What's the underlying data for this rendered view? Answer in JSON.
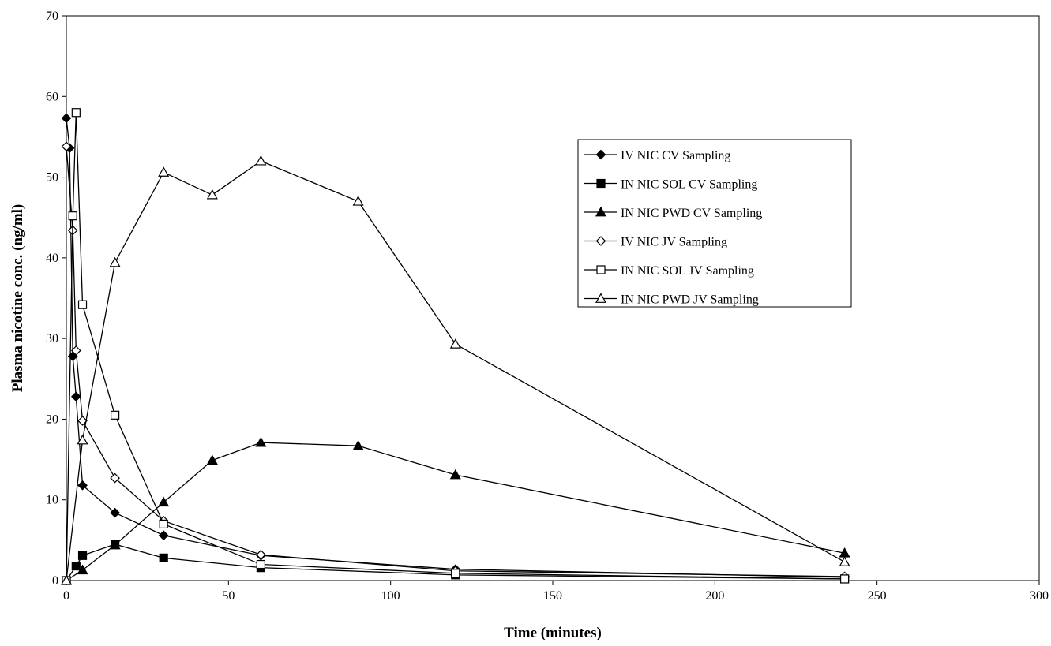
{
  "chart_data": {
    "type": "line",
    "title": "",
    "xlabel": "Time (minutes)",
    "ylabel": "Plasma nicotine conc. (ng/ml)",
    "xlim": [
      0,
      300
    ],
    "ylim": [
      0,
      70
    ],
    "xticks": [
      0,
      50,
      100,
      150,
      200,
      250,
      300
    ],
    "yticks": [
      0,
      10,
      20,
      30,
      40,
      50,
      60,
      70
    ],
    "grid": false,
    "legend_position": "right",
    "series": [
      {
        "name": "IV NIC CV Sampling",
        "marker": "diamond",
        "filled": true,
        "x": [
          0,
          1,
          2,
          3,
          5,
          15,
          30,
          60,
          120,
          240
        ],
        "y": [
          57.3,
          53.6,
          27.8,
          22.8,
          11.8,
          8.4,
          5.6,
          3.1,
          1.4,
          0.4
        ]
      },
      {
        "name": "IN NIC SOL CV Sampling",
        "marker": "square",
        "filled": true,
        "x": [
          0,
          3,
          5,
          15,
          30,
          60,
          120,
          240
        ],
        "y": [
          0,
          1.8,
          3.1,
          4.5,
          2.8,
          1.6,
          0.7,
          0.2
        ]
      },
      {
        "name": "IN NIC PWD CV Sampling",
        "marker": "triangle",
        "filled": true,
        "x": [
          0,
          5,
          15,
          30,
          45,
          60,
          90,
          120,
          240
        ],
        "y": [
          0,
          1.3,
          4.4,
          9.7,
          14.9,
          17.1,
          16.7,
          13.1,
          3.4
        ]
      },
      {
        "name": "IV NIC JV Sampling",
        "marker": "diamond",
        "filled": false,
        "x": [
          0,
          2,
          3,
          5,
          15,
          30,
          60,
          120,
          240
        ],
        "y": [
          53.8,
          43.4,
          28.5,
          19.8,
          12.7,
          7.4,
          3.2,
          1.2,
          0.5
        ]
      },
      {
        "name": "IN NIC SOL JV Sampling",
        "marker": "square",
        "filled": false,
        "x": [
          0,
          2,
          3,
          5,
          15,
          30,
          60,
          120,
          240
        ],
        "y": [
          0,
          45.2,
          58.0,
          34.2,
          20.5,
          7.0,
          2.0,
          0.9,
          0.2
        ]
      },
      {
        "name": "IN NIC PWD JV Sampling",
        "marker": "triangle",
        "filled": false,
        "x": [
          0,
          5,
          15,
          30,
          45,
          60,
          90,
          120,
          240
        ],
        "y": [
          0,
          17.4,
          39.4,
          50.6,
          47.8,
          52.0,
          47.0,
          29.3,
          2.3
        ]
      }
    ]
  }
}
